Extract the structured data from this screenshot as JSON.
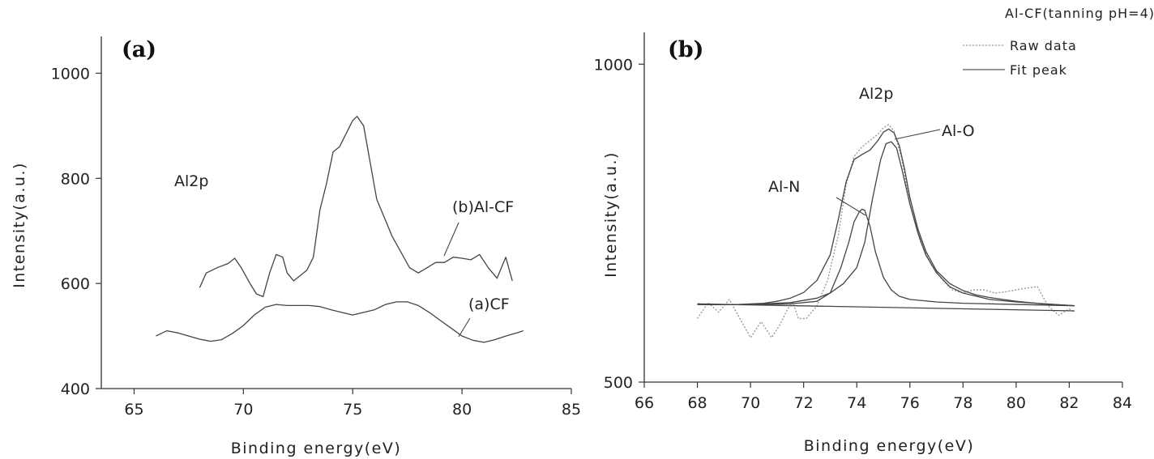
{
  "chart_data": [
    {
      "type": "line",
      "panel_label": "(a)",
      "xlabel": "Binding energy(eV)",
      "ylabel": "Intensity(a.u.)",
      "xlim": [
        63.5,
        85
      ],
      "ylim": [
        400,
        1070
      ],
      "xticks": [
        65,
        70,
        75,
        80,
        85
      ],
      "yticks": [
        400,
        600,
        800,
        1000
      ],
      "annotations": [
        {
          "text": "Al2p"
        },
        {
          "text": "(b)Al-CF"
        },
        {
          "text": "(a)CF"
        }
      ],
      "series": [
        {
          "name": "(b)Al-CF",
          "x": [
            68.0,
            68.3,
            68.8,
            69.3,
            69.6,
            69.9,
            70.3,
            70.6,
            70.9,
            71.2,
            71.5,
            71.8,
            72.0,
            72.3,
            72.6,
            72.9,
            73.2,
            73.5,
            73.8,
            74.1,
            74.4,
            74.7,
            75.0,
            75.2,
            75.5,
            75.8,
            76.1,
            76.4,
            76.8,
            77.2,
            77.6,
            78.0,
            78.4,
            78.8,
            79.2,
            79.6,
            80.0,
            80.4,
            80.8,
            81.2,
            81.6,
            82.0,
            82.3
          ],
          "y": [
            592,
            620,
            630,
            638,
            648,
            630,
            600,
            580,
            575,
            620,
            655,
            650,
            620,
            605,
            615,
            625,
            650,
            740,
            790,
            850,
            860,
            885,
            910,
            918,
            900,
            830,
            760,
            730,
            690,
            660,
            630,
            620,
            630,
            640,
            640,
            650,
            648,
            645,
            655,
            630,
            610,
            650,
            605
          ]
        },
        {
          "name": "(a)CF",
          "x": [
            66.0,
            66.5,
            67.0,
            67.5,
            68.0,
            68.5,
            69.0,
            69.5,
            70.0,
            70.5,
            71.0,
            71.5,
            72.0,
            72.5,
            73.0,
            73.5,
            74.0,
            74.5,
            75.0,
            75.5,
            76.0,
            76.5,
            77.0,
            77.5,
            78.0,
            78.5,
            79.0,
            79.5,
            80.0,
            80.5,
            81.0,
            81.5,
            82.0,
            82.5,
            82.8
          ],
          "y": [
            500,
            510,
            506,
            500,
            494,
            490,
            493,
            505,
            520,
            540,
            555,
            560,
            558,
            558,
            558,
            556,
            550,
            545,
            540,
            545,
            550,
            560,
            565,
            565,
            558,
            545,
            530,
            515,
            500,
            492,
            488,
            493,
            500,
            506,
            510
          ]
        }
      ]
    },
    {
      "type": "line",
      "panel_label": "(b)",
      "xlabel": "Binding energy(eV)",
      "ylabel": "Intensity(a.u.)",
      "xlim": [
        66,
        84
      ],
      "ylim": [
        500,
        1050
      ],
      "xticks": [
        66,
        68,
        70,
        72,
        74,
        76,
        78,
        80,
        82,
        84
      ],
      "yticks": [
        500,
        1000
      ],
      "legend_title": "Al-CF(tanning pH=4)",
      "legend_position": "top-right",
      "annotations": [
        {
          "text": "Al2p"
        },
        {
          "text": "Al-O"
        },
        {
          "text": "Al-N"
        }
      ],
      "series": [
        {
          "name": "Raw data",
          "style": "dotted",
          "x": [
            68.0,
            68.4,
            68.8,
            69.2,
            69.6,
            70.0,
            70.4,
            70.8,
            71.1,
            71.4,
            71.6,
            71.8,
            72.1,
            72.5,
            72.9,
            73.3,
            73.6,
            73.9,
            74.2,
            74.5,
            74.8,
            75.0,
            75.2,
            75.4,
            75.7,
            76.0,
            76.4,
            76.8,
            77.2,
            77.6,
            78.0,
            78.4,
            78.8,
            79.2,
            79.6,
            80.0,
            80.4,
            80.8,
            81.2,
            81.6,
            82.0,
            82.2
          ],
          "y": [
            600,
            625,
            610,
            630,
            600,
            570,
            595,
            570,
            590,
            615,
            625,
            600,
            600,
            620,
            660,
            730,
            810,
            855,
            870,
            880,
            890,
            900,
            905,
            895,
            850,
            780,
            720,
            685,
            662,
            645,
            640,
            645,
            645,
            640,
            642,
            645,
            648,
            650,
            620,
            605,
            615,
            610
          ]
        },
        {
          "name": "Fit peak",
          "style": "solid",
          "x": [
            68.0,
            68.5,
            69.0,
            69.5,
            70.0,
            70.5,
            71.0,
            71.5,
            72.0,
            72.5,
            73.0,
            73.3,
            73.6,
            73.9,
            74.2,
            74.5,
            74.8,
            75.0,
            75.2,
            75.4,
            75.6,
            75.8,
            76.0,
            76.3,
            76.6,
            77.0,
            77.5,
            78.0,
            78.5,
            79.0,
            79.5,
            80.0,
            81.0,
            82.2
          ],
          "y": [
            623,
            622,
            622,
            622,
            623,
            624,
            627,
            632,
            641,
            660,
            700,
            755,
            815,
            850,
            858,
            865,
            880,
            893,
            898,
            892,
            872,
            835,
            790,
            741,
            706,
            675,
            655,
            644,
            637,
            633,
            630,
            627,
            623,
            620
          ]
        },
        {
          "name": "Al-O",
          "style": "solid",
          "x": [
            68.0,
            70.0,
            71.5,
            72.5,
            73.0,
            73.5,
            74.0,
            74.3,
            74.6,
            74.9,
            75.1,
            75.3,
            75.5,
            75.7,
            76.0,
            76.3,
            76.6,
            77.0,
            77.5,
            78.0,
            79.0,
            80.0,
            82.2
          ],
          "y": [
            622,
            622,
            625,
            632,
            640,
            655,
            680,
            720,
            790,
            850,
            875,
            878,
            868,
            835,
            780,
            735,
            700,
            672,
            650,
            640,
            630,
            626,
            620
          ]
        },
        {
          "name": "Al-N",
          "style": "solid",
          "x": [
            68.0,
            70.0,
            71.5,
            72.5,
            73.0,
            73.4,
            73.7,
            73.9,
            74.1,
            74.2,
            74.3,
            74.5,
            74.7,
            75.0,
            75.3,
            75.6,
            76.0,
            77.0,
            78.0,
            82.2
          ],
          "y": [
            622,
            622,
            623,
            627,
            640,
            680,
            720,
            752,
            768,
            772,
            770,
            745,
            705,
            665,
            645,
            635,
            630,
            626,
            624,
            620
          ]
        },
        {
          "name": "Baseline",
          "style": "solid",
          "x": [
            68.0,
            82.2
          ],
          "y": [
            623,
            612
          ]
        }
      ]
    }
  ]
}
